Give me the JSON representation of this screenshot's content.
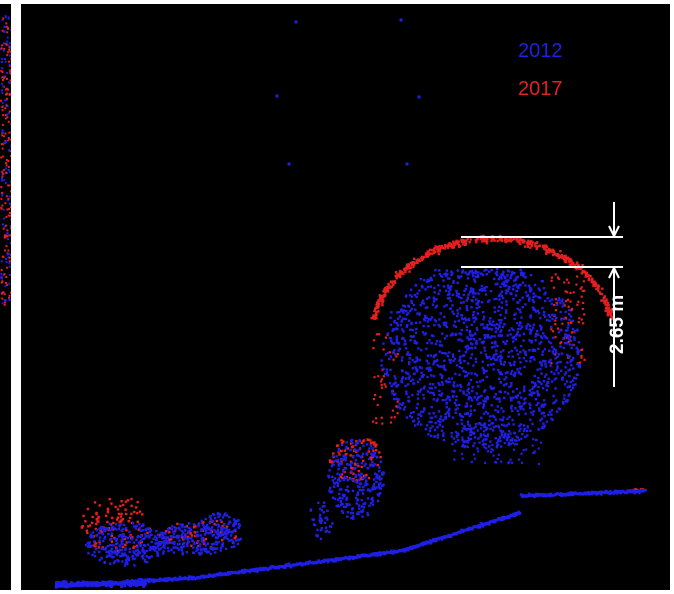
{
  "legend": {
    "items": [
      {
        "label": "2012",
        "color": "#1f1fe6"
      },
      {
        "label": "2017",
        "color": "#e61f1f"
      }
    ]
  },
  "measurement": {
    "label": "2.65 m",
    "color": "#ffffff"
  },
  "colors": {
    "background": "#000000",
    "frame": "#ffffff",
    "points_2012": "#1f1fe6",
    "points_2017": "#e61f1f"
  }
}
